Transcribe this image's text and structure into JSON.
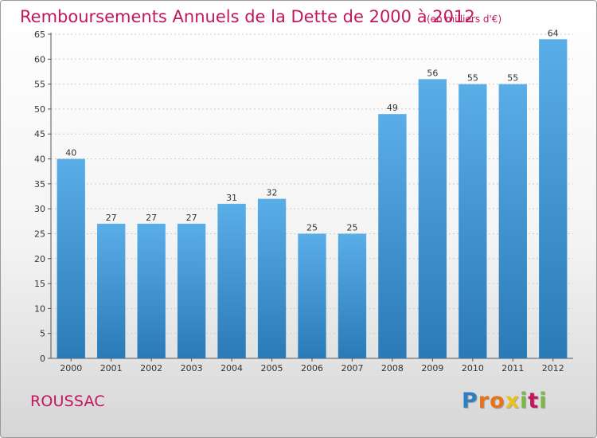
{
  "chart_data": {
    "type": "bar",
    "title": "Remboursements Annuels de la Dette de 2000 à 2012",
    "subtitle": "(en milliers d'€)",
    "categories": [
      "2000",
      "2001",
      "2002",
      "2003",
      "2004",
      "2005",
      "2006",
      "2007",
      "2008",
      "2009",
      "2010",
      "2011",
      "2012"
    ],
    "values": [
      40,
      27,
      27,
      27,
      31,
      32,
      25,
      25,
      49,
      56,
      55,
      55,
      64
    ],
    "ylim": [
      0,
      65
    ],
    "yticks": [
      0,
      5,
      10,
      15,
      20,
      25,
      30,
      35,
      40,
      45,
      50,
      55,
      60,
      65
    ],
    "grid": true,
    "bar_color_top": "#5aaee8",
    "bar_color_bottom": "#2a7ab8"
  },
  "footer": {
    "commune": "ROUSSAC",
    "logo_letters": [
      {
        "char": "P",
        "color": "#2e7fc1"
      },
      {
        "char": "r",
        "color": "#e8731c"
      },
      {
        "char": "o",
        "color": "#e8731c"
      },
      {
        "char": "x",
        "color": "#e6c21a"
      },
      {
        "char": "i",
        "color": "#7ab648"
      },
      {
        "char": "t",
        "color": "#c2185b"
      },
      {
        "char": "i",
        "color": "#7ab648"
      }
    ]
  },
  "colors": {
    "title": "#c2185b",
    "grid": "#cccccc"
  }
}
